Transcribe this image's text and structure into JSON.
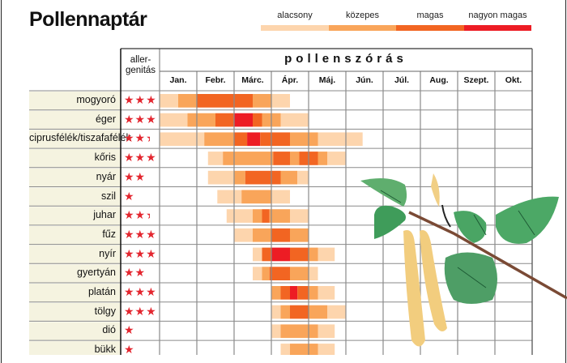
{
  "title": "Pollennaptár",
  "legend": [
    {
      "label": "alacsony",
      "color": "#fdd5ad"
    },
    {
      "label": "közepes",
      "color": "#f9a55a"
    },
    {
      "label": "magas",
      "color": "#f26522"
    },
    {
      "label": "nagyon magas",
      "color": "#ed1c24"
    }
  ],
  "chart_data": {
    "type": "table",
    "title": "Pollennaptár",
    "allergen_header": "aller-\ngenitás",
    "allergen_header_lines": [
      "aller-",
      "genitás"
    ],
    "period_header": "pollenszórás",
    "months": [
      "Jan.",
      "Febr.",
      "Márc.",
      "Ápr.",
      "Máj.",
      "Jún.",
      "Júl.",
      "Aug.",
      "Szept.",
      "Okt."
    ],
    "segment_format": "[start_month, end_month, level] — months counted from start of Jan. (0) ; level 1=alacsony … 4=nagyon magas",
    "rows": [
      {
        "name": "mogyoró",
        "allergenicity": 3,
        "segments": [
          [
            0,
            0.5,
            1
          ],
          [
            0.5,
            1,
            2
          ],
          [
            1,
            2.5,
            3
          ],
          [
            2.5,
            3,
            2
          ],
          [
            3,
            3.5,
            1
          ]
        ]
      },
      {
        "name": "éger",
        "allergenicity": 3,
        "segments": [
          [
            0,
            0.75,
            1
          ],
          [
            0.75,
            1.5,
            2
          ],
          [
            1.5,
            2,
            3
          ],
          [
            2,
            2.5,
            4
          ],
          [
            2.5,
            2.75,
            3
          ],
          [
            2.75,
            3.25,
            2
          ],
          [
            3.25,
            4,
            1
          ]
        ]
      },
      {
        "name": "ciprusfélék/tiszafafélék",
        "allergenicity": 2.5,
        "segments": [
          [
            0,
            1.2,
            1
          ],
          [
            1.2,
            2,
            2
          ],
          [
            2,
            2.35,
            3
          ],
          [
            2.35,
            2.7,
            4
          ],
          [
            2.7,
            3.5,
            3
          ],
          [
            3.5,
            4.25,
            2
          ],
          [
            4.25,
            5.45,
            1
          ]
        ]
      },
      {
        "name": "kőris",
        "allergenicity": 3,
        "segments": [
          [
            1.3,
            1.7,
            1
          ],
          [
            1.7,
            3.05,
            2
          ],
          [
            3.05,
            3.5,
            3
          ],
          [
            3.5,
            3.75,
            2
          ],
          [
            3.75,
            4.25,
            3
          ],
          [
            4.25,
            4.5,
            2
          ],
          [
            4.5,
            5,
            1
          ]
        ]
      },
      {
        "name": "nyár",
        "allergenicity": 2,
        "segments": [
          [
            1.3,
            2,
            1
          ],
          [
            2,
            2.3,
            2
          ],
          [
            2.3,
            3.25,
            3
          ],
          [
            3.25,
            3.7,
            2
          ],
          [
            3.7,
            4,
            1
          ]
        ]
      },
      {
        "name": "szil",
        "allergenicity": 1,
        "segments": [
          [
            1.55,
            2.2,
            1
          ],
          [
            2.2,
            3,
            2
          ],
          [
            3,
            3.5,
            1
          ]
        ]
      },
      {
        "name": "juhar",
        "allergenicity": 2.5,
        "segments": [
          [
            1.8,
            2.5,
            1
          ],
          [
            2.5,
            2.75,
            2
          ],
          [
            2.75,
            2.95,
            3
          ],
          [
            2.95,
            3.5,
            2
          ],
          [
            3.5,
            4,
            1
          ]
        ]
      },
      {
        "name": "fűz",
        "allergenicity": 3,
        "segments": [
          [
            2,
            2.5,
            1
          ],
          [
            2.5,
            3,
            2
          ],
          [
            3,
            3.5,
            3
          ],
          [
            3.5,
            4,
            2
          ]
        ]
      },
      {
        "name": "nyír",
        "allergenicity": 3,
        "segments": [
          [
            2.5,
            2.75,
            1
          ],
          [
            2.75,
            3,
            3
          ],
          [
            3,
            3.5,
            4
          ],
          [
            3.5,
            4,
            3
          ],
          [
            4,
            4.25,
            2
          ],
          [
            4.25,
            4.7,
            1
          ]
        ]
      },
      {
        "name": "gyertyán",
        "allergenicity": 2,
        "segments": [
          [
            2.5,
            2.75,
            1
          ],
          [
            2.75,
            2.95,
            2
          ],
          [
            2.95,
            3.5,
            3
          ],
          [
            3.5,
            4,
            2
          ],
          [
            4,
            4.25,
            1
          ]
        ]
      },
      {
        "name": "platán",
        "allergenicity": 3,
        "segments": [
          [
            3,
            3.25,
            2
          ],
          [
            3.25,
            3.5,
            3
          ],
          [
            3.5,
            3.7,
            4
          ],
          [
            3.7,
            4,
            3
          ],
          [
            4,
            4.25,
            2
          ],
          [
            4.25,
            4.7,
            1
          ]
        ]
      },
      {
        "name": "tölgy",
        "allergenicity": 3,
        "segments": [
          [
            3,
            3.25,
            1
          ],
          [
            3.25,
            3.5,
            2
          ],
          [
            3.5,
            4,
            3
          ],
          [
            4,
            4.5,
            2
          ],
          [
            4.5,
            5,
            1
          ]
        ]
      },
      {
        "name": "dió",
        "allergenicity": 1,
        "segments": [
          [
            3,
            3.25,
            1
          ],
          [
            3.25,
            4.25,
            2
          ],
          [
            4.25,
            4.7,
            1
          ]
        ]
      },
      {
        "name": "bükk",
        "allergenicity": 1,
        "segments": [
          [
            3.25,
            3.5,
            1
          ],
          [
            3.5,
            4.25,
            2
          ],
          [
            4.25,
            4.7,
            1
          ]
        ]
      }
    ]
  }
}
